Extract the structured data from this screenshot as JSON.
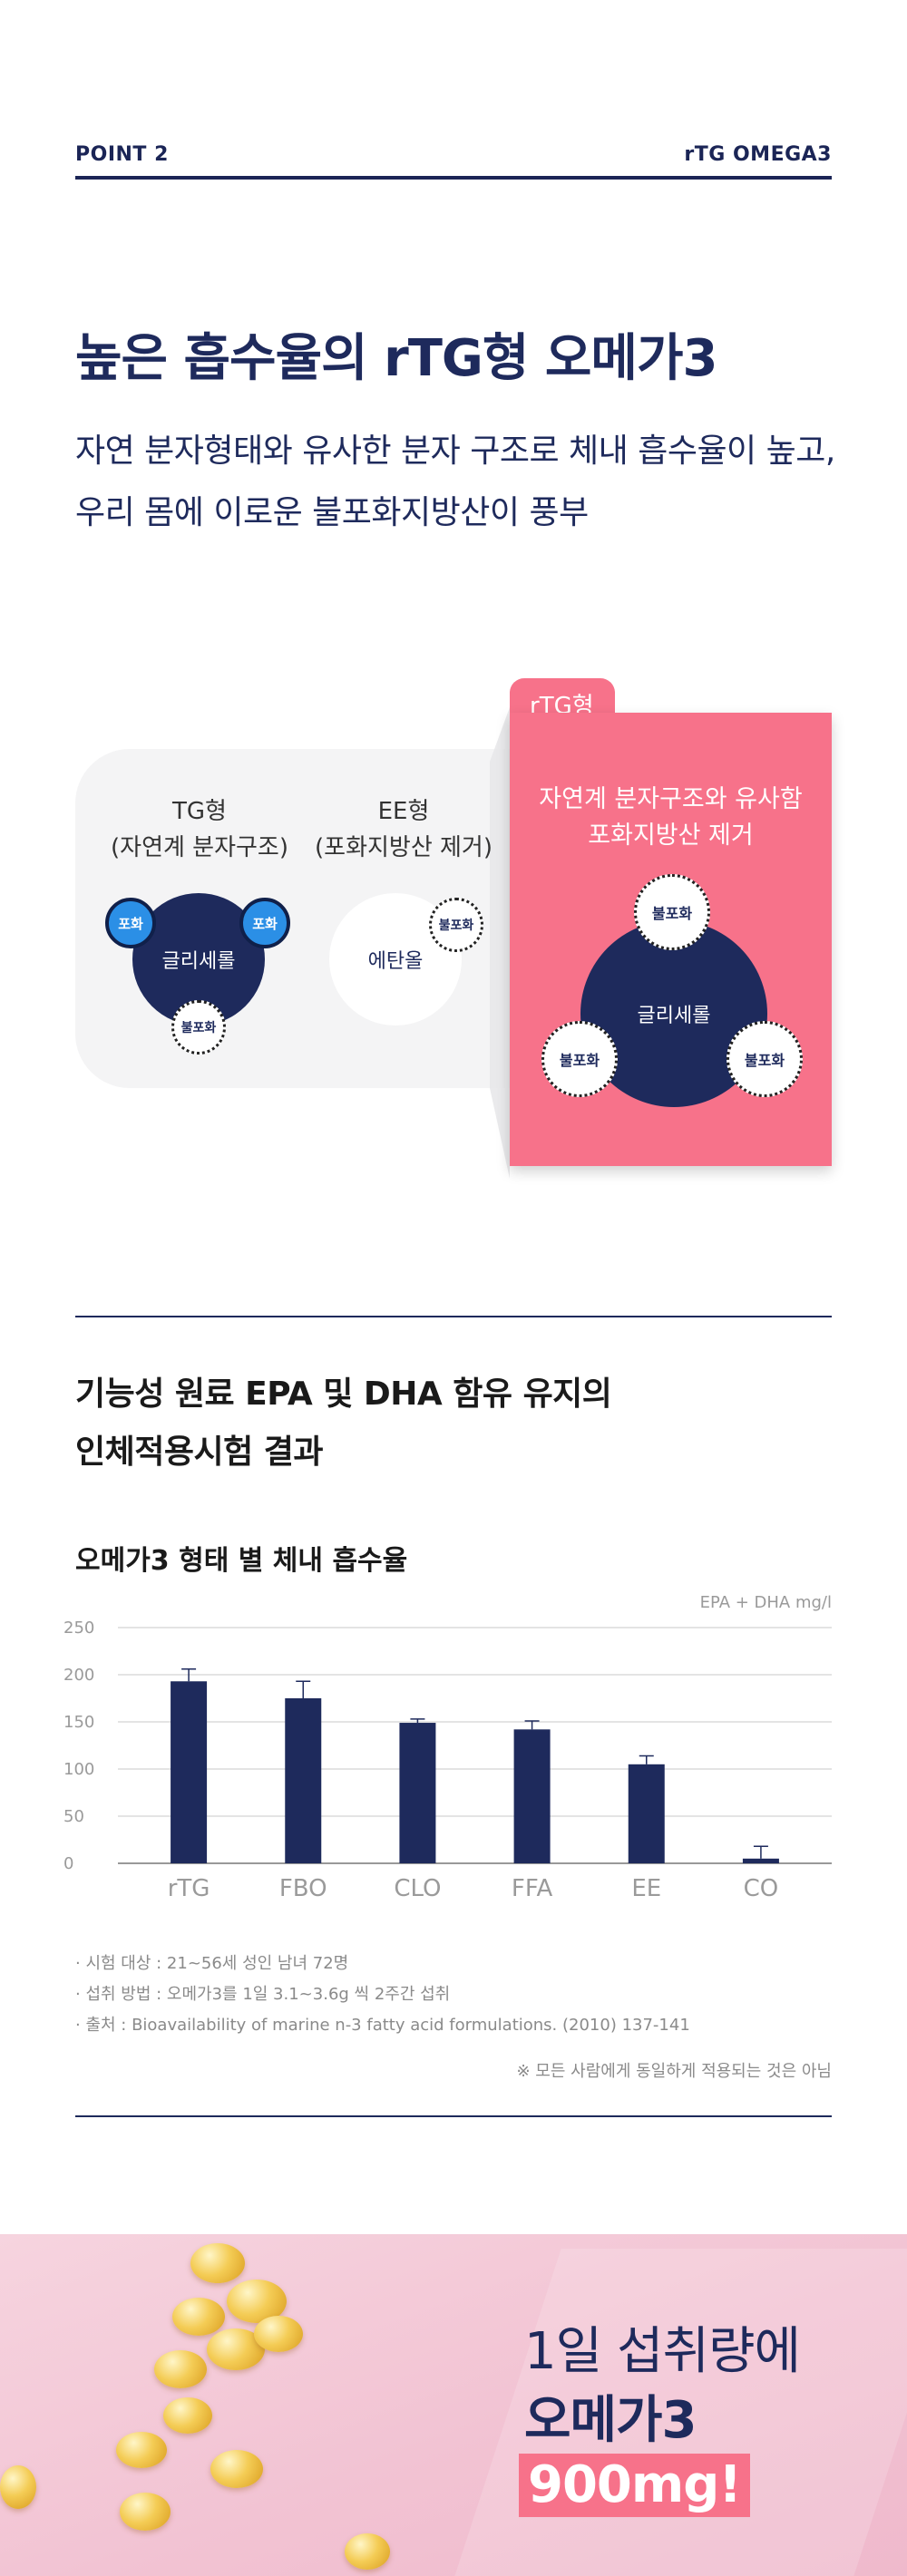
{
  "header": {
    "left": "POINT 2",
    "right": "rTG OMEGA3"
  },
  "hero": {
    "title": "높은 흡수율의 rTG형 오메가3",
    "sub1": "자연 분자형태와 유사한 분자 구조로 체내 흡수율이 높고,",
    "sub2": "우리 몸에 이로운 불포화지방산이 풍부"
  },
  "compare": {
    "tg_label": "TG형",
    "tg_sub": "(자연계 분자구조)",
    "ee_label": "EE형",
    "ee_sub": "(포화지방산 제거)",
    "saturated": "포화",
    "unsaturated": "불포화",
    "glycerol": "글리세롤",
    "ethanol": "에탄올",
    "rtg_tab": "rTG형",
    "rtg_desc1": "자연계 분자구조와 유사함",
    "rtg_desc2": "포화지방산 제거",
    "colors": {
      "navy": "#1e2a5c",
      "pink": "#f7728a",
      "blue": "#2b8fe6"
    }
  },
  "study": {
    "title1": "기능성 원료 EPA 및 DHA 함유 유지의",
    "title2": "인체적용시험 결과",
    "chart_title": "오메가3 형태 별 체내 흡수율",
    "unit": "EPA + DHA mg/l",
    "note1": "· 시험 대상 : 21~56세 성인 남녀 72명",
    "note2": "· 섭취 방법 : 오메가3를 1일 3.1~3.6g 씩 2주간 섭취",
    "note3": "· 출처 : Bioavailability of marine n-3 fatty acid formulations. (2010) 137-141",
    "disclaimer": "※ 모든 사람에게 동일하게 적용되는 것은 아님"
  },
  "chart_data": {
    "type": "bar",
    "title": "오메가3 형태 별 체내 흡수율",
    "ylabel": "EPA + DHA mg/l",
    "categories": [
      "rTG",
      "FBO",
      "CLO",
      "FFA",
      "EE",
      "CO"
    ],
    "values": [
      193,
      175,
      149,
      142,
      105,
      5
    ],
    "errors": [
      13,
      18,
      4,
      9,
      9,
      13
    ],
    "ylim": [
      0,
      250
    ],
    "yticks": [
      0,
      50,
      100,
      150,
      200,
      250
    ],
    "grid": true,
    "bar_color": "#1e2a5c"
  },
  "banner": {
    "line1": "1일 섭취량에",
    "line2": "오메가3",
    "line3": "900mg!"
  }
}
